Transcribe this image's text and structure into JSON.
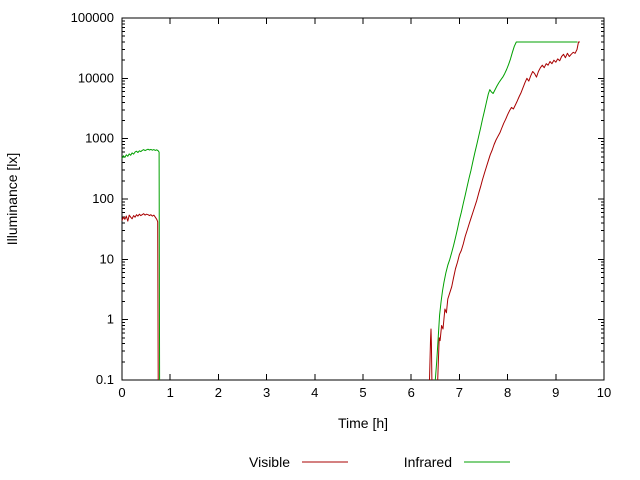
{
  "chart_data": {
    "type": "line",
    "title": "",
    "xlabel": "Time [h]",
    "ylabel": "Illuminance [lx]",
    "xlim": [
      0,
      10
    ],
    "ylim": [
      0.1,
      100000
    ],
    "yscale": "log",
    "grid": false,
    "legend_position": "bottom-center",
    "xticks": [
      0,
      1,
      2,
      3,
      4,
      5,
      6,
      7,
      8,
      9,
      10
    ],
    "yticks": [
      0.1,
      1,
      10,
      100,
      1000,
      10000,
      100000
    ],
    "ytick_labels": [
      "0.1",
      "1",
      "10",
      "100",
      "1000",
      "10000",
      "100000"
    ],
    "axis_color": "#000000",
    "background_color": "#ffffff",
    "series": [
      {
        "name": "Visible",
        "color": "#a80000",
        "segments": [
          [
            [
              0,
              44
            ],
            [
              0.03,
              50
            ],
            [
              0.06,
              46
            ],
            [
              0.09,
              52
            ],
            [
              0.12,
              43
            ],
            [
              0.15,
              54
            ],
            [
              0.18,
              50
            ],
            [
              0.21,
              47
            ],
            [
              0.24,
              53
            ],
            [
              0.27,
              50
            ],
            [
              0.3,
              55
            ],
            [
              0.33,
              52
            ],
            [
              0.36,
              56
            ],
            [
              0.39,
              53
            ],
            [
              0.42,
              55
            ],
            [
              0.45,
              57
            ],
            [
              0.48,
              54
            ],
            [
              0.51,
              56
            ],
            [
              0.54,
              55
            ],
            [
              0.57,
              53
            ],
            [
              0.6,
              55
            ],
            [
              0.63,
              52
            ],
            [
              0.66,
              54
            ],
            [
              0.69,
              50
            ],
            [
              0.72,
              46
            ],
            [
              0.74,
              42
            ],
            [
              0.75,
              0.1
            ]
          ],
          [
            [
              6.38,
              0.1
            ],
            [
              6.4,
              0.45
            ],
            [
              6.41,
              0.7
            ],
            [
              6.42,
              0.4
            ],
            [
              6.43,
              0.1
            ]
          ],
          [
            [
              6.55,
              0.1
            ],
            [
              6.58,
              0.5
            ],
            [
              6.6,
              0.45
            ],
            [
              6.63,
              0.8
            ],
            [
              6.66,
              0.7
            ],
            [
              6.7,
              1.5
            ],
            [
              6.73,
              1.3
            ],
            [
              6.76,
              2.2
            ],
            [
              6.8,
              2.8
            ],
            [
              6.84,
              3.5
            ],
            [
              6.88,
              5
            ],
            [
              6.92,
              7
            ],
            [
              6.96,
              9
            ],
            [
              7,
              12
            ],
            [
              7.04,
              14
            ],
            [
              7.08,
              18
            ],
            [
              7.12,
              24
            ],
            [
              7.16,
              30
            ],
            [
              7.2,
              38
            ],
            [
              7.24,
              48
            ],
            [
              7.28,
              60
            ],
            [
              7.32,
              75
            ],
            [
              7.36,
              95
            ],
            [
              7.4,
              125
            ],
            [
              7.44,
              160
            ],
            [
              7.48,
              210
            ],
            [
              7.52,
              270
            ],
            [
              7.56,
              340
            ],
            [
              7.6,
              430
            ],
            [
              7.64,
              540
            ],
            [
              7.68,
              650
            ],
            [
              7.72,
              800
            ],
            [
              7.76,
              950
            ],
            [
              7.8,
              1100
            ],
            [
              7.84,
              1250
            ],
            [
              7.88,
              1500
            ],
            [
              7.92,
              1800
            ],
            [
              7.96,
              2100
            ],
            [
              8,
              2500
            ],
            [
              8.04,
              2900
            ],
            [
              8.08,
              3300
            ],
            [
              8.12,
              3100
            ],
            [
              8.16,
              3600
            ],
            [
              8.2,
              4200
            ],
            [
              8.24,
              5000
            ],
            [
              8.28,
              5800
            ],
            [
              8.32,
              7000
            ],
            [
              8.36,
              8500
            ],
            [
              8.4,
              10000
            ],
            [
              8.44,
              9000
            ],
            [
              8.48,
              11000
            ],
            [
              8.52,
              13000
            ],
            [
              8.56,
              12000
            ],
            [
              8.6,
              10500
            ],
            [
              8.64,
              13000
            ],
            [
              8.68,
              15000
            ],
            [
              8.72,
              16500
            ],
            [
              8.76,
              15000
            ],
            [
              8.8,
              17500
            ],
            [
              8.84,
              16500
            ],
            [
              8.88,
              19000
            ],
            [
              8.92,
              17500
            ],
            [
              8.96,
              20000
            ],
            [
              9,
              18500
            ],
            [
              9.04,
              21000
            ],
            [
              9.08,
              19500
            ],
            [
              9.12,
              23000
            ],
            [
              9.16,
              25000
            ],
            [
              9.2,
              22000
            ],
            [
              9.24,
              26000
            ],
            [
              9.28,
              23000
            ],
            [
              9.32,
              25000
            ],
            [
              9.36,
              27000
            ],
            [
              9.4,
              26000
            ],
            [
              9.44,
              30000
            ],
            [
              9.47,
              40000
            ],
            [
              9.5,
              40000
            ]
          ]
        ]
      },
      {
        "name": "Infrared",
        "color": "#00a000",
        "segments": [
          [
            [
              0,
              470
            ],
            [
              0.03,
              520
            ],
            [
              0.06,
              490
            ],
            [
              0.09,
              540
            ],
            [
              0.12,
              510
            ],
            [
              0.15,
              560
            ],
            [
              0.18,
              530
            ],
            [
              0.21,
              580
            ],
            [
              0.24,
              555
            ],
            [
              0.27,
              600
            ],
            [
              0.3,
              620
            ],
            [
              0.33,
              590
            ],
            [
              0.36,
              630
            ],
            [
              0.39,
              610
            ],
            [
              0.42,
              640
            ],
            [
              0.45,
              660
            ],
            [
              0.48,
              635
            ],
            [
              0.51,
              655
            ],
            [
              0.54,
              670
            ],
            [
              0.57,
              650
            ],
            [
              0.6,
              665
            ],
            [
              0.63,
              645
            ],
            [
              0.66,
              660
            ],
            [
              0.69,
              640
            ],
            [
              0.72,
              655
            ],
            [
              0.75,
              630
            ],
            [
              0.77,
              600
            ],
            [
              0.78,
              0.1
            ]
          ],
          [
            [
              6.5,
              0.1
            ],
            [
              6.53,
              0.2
            ],
            [
              6.56,
              0.5
            ],
            [
              6.59,
              1.2
            ],
            [
              6.62,
              2
            ],
            [
              6.65,
              3
            ],
            [
              6.68,
              4.2
            ],
            [
              6.72,
              6
            ],
            [
              6.76,
              8
            ],
            [
              6.8,
              10
            ],
            [
              6.84,
              13
            ],
            [
              6.88,
              17
            ],
            [
              6.92,
              23
            ],
            [
              6.96,
              32
            ],
            [
              7,
              45
            ],
            [
              7.04,
              60
            ],
            [
              7.08,
              85
            ],
            [
              7.12,
              115
            ],
            [
              7.16,
              160
            ],
            [
              7.2,
              220
            ],
            [
              7.24,
              300
            ],
            [
              7.28,
              420
            ],
            [
              7.32,
              580
            ],
            [
              7.36,
              800
            ],
            [
              7.4,
              1100
            ],
            [
              7.44,
              1500
            ],
            [
              7.48,
              2100
            ],
            [
              7.52,
              2900
            ],
            [
              7.56,
              4000
            ],
            [
              7.6,
              5500
            ],
            [
              7.63,
              6500
            ],
            [
              7.66,
              6000
            ],
            [
              7.7,
              5600
            ],
            [
              7.74,
              6500
            ],
            [
              7.78,
              7500
            ],
            [
              7.82,
              8500
            ],
            [
              7.86,
              9500
            ],
            [
              7.9,
              10500
            ],
            [
              7.94,
              12000
            ],
            [
              7.98,
              14000
            ],
            [
              8.02,
              17000
            ],
            [
              8.06,
              21000
            ],
            [
              8.1,
              27000
            ],
            [
              8.14,
              34000
            ],
            [
              8.18,
              40000
            ],
            [
              8.3,
              40000
            ],
            [
              8.5,
              40000
            ],
            [
              8.7,
              40000
            ],
            [
              8.9,
              40000
            ],
            [
              9.1,
              40000
            ],
            [
              9.3,
              40000
            ],
            [
              9.45,
              40000
            ]
          ]
        ]
      }
    ]
  }
}
